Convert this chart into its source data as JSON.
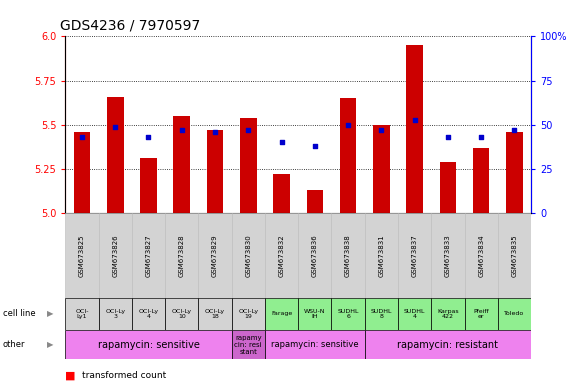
{
  "title": "GDS4236 / 7970597",
  "samples": [
    "GSM673825",
    "GSM673826",
    "GSM673827",
    "GSM673828",
    "GSM673829",
    "GSM673830",
    "GSM673832",
    "GSM673836",
    "GSM673838",
    "GSM673831",
    "GSM673837",
    "GSM673833",
    "GSM673834",
    "GSM673835"
  ],
  "red_values": [
    5.46,
    5.66,
    5.31,
    5.55,
    5.47,
    5.54,
    5.22,
    5.13,
    5.65,
    5.5,
    5.95,
    5.29,
    5.37,
    5.46
  ],
  "blue_values": [
    43,
    49,
    43,
    47,
    46,
    47,
    40,
    38,
    50,
    47,
    53,
    43,
    43,
    47
  ],
  "cell_lines": [
    "OCI-\nLy1",
    "OCI-Ly\n3",
    "OCI-Ly\n4",
    "OCI-Ly\n10",
    "OCI-Ly\n18",
    "OCI-Ly\n19",
    "Farage",
    "WSU-N\nIH",
    "SUDHL\n6",
    "SUDHL\n8",
    "SUDHL\n4",
    "Karpas\n422",
    "Pfeiff\ner",
    "Toledo"
  ],
  "cell_line_colors": [
    "#d3d3d3",
    "#d3d3d3",
    "#d3d3d3",
    "#d3d3d3",
    "#d3d3d3",
    "#d3d3d3",
    "#90ee90",
    "#90ee90",
    "#90ee90",
    "#90ee90",
    "#90ee90",
    "#90ee90",
    "#90ee90",
    "#90ee90"
  ],
  "other_groups": [
    {
      "label": "rapamycin: sensitive",
      "start": 0,
      "end": 5,
      "color": "#ee82ee",
      "fontsize": 7
    },
    {
      "label": "rapamy\ncin: resi\nstant",
      "start": 5,
      "end": 6,
      "color": "#cc66cc",
      "fontsize": 5
    },
    {
      "label": "rapamycin: sensitive",
      "start": 6,
      "end": 9,
      "color": "#ee82ee",
      "fontsize": 6
    },
    {
      "label": "rapamycin: resistant",
      "start": 9,
      "end": 14,
      "color": "#ee82ee",
      "fontsize": 7
    }
  ],
  "ylim": [
    5.0,
    6.0
  ],
  "y2lim": [
    0,
    100
  ],
  "yticks": [
    5.0,
    5.25,
    5.5,
    5.75,
    6.0
  ],
  "y2ticks": [
    0,
    25,
    50,
    75,
    100
  ],
  "bar_color": "#cc0000",
  "dot_color": "#0000cc",
  "bar_width": 0.5,
  "title_fontsize": 10,
  "tick_fontsize": 7,
  "sample_fontsize": 5,
  "cell_fontsize": 4.5
}
